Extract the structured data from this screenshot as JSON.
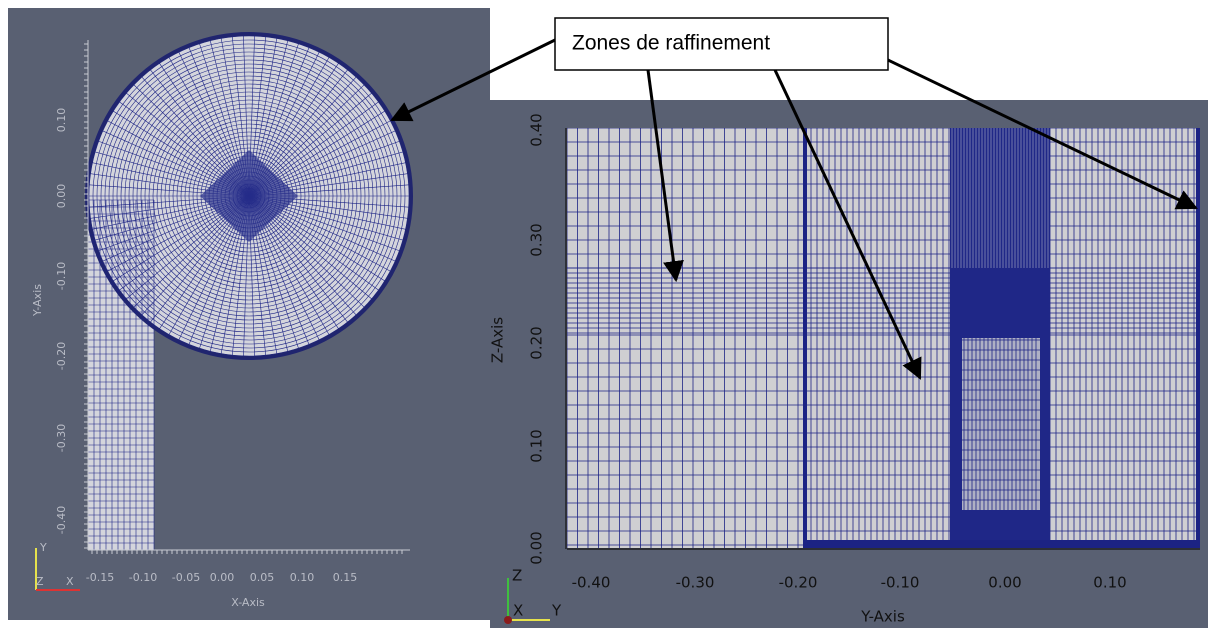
{
  "callout": {
    "text": "Zones de raffinement"
  },
  "left_view": {
    "y_axis_label": "Y-Axis",
    "x_axis_label": "X-Axis",
    "y_ticks": [
      "0.10",
      "0.00",
      "-0.10",
      "-0.20",
      "-0.30",
      "-0.40"
    ],
    "x_ticks": [
      "-0.15",
      "-0.10",
      "-0.05",
      "0.00",
      "0.05",
      "0.10",
      "0.15"
    ],
    "orientation": [
      "Y",
      "Z",
      "X"
    ]
  },
  "right_view": {
    "y_axis_label": "Z-Axis",
    "x_axis_label": "Y-Axis",
    "y_ticks": [
      "0.40",
      "0.30",
      "0.20",
      "0.10",
      "0.00"
    ],
    "x_ticks": [
      "-0.40",
      "-0.30",
      "-0.20",
      "-0.10",
      "0.00",
      "0.10"
    ],
    "orientation": [
      "Z",
      "X",
      "Y"
    ]
  }
}
